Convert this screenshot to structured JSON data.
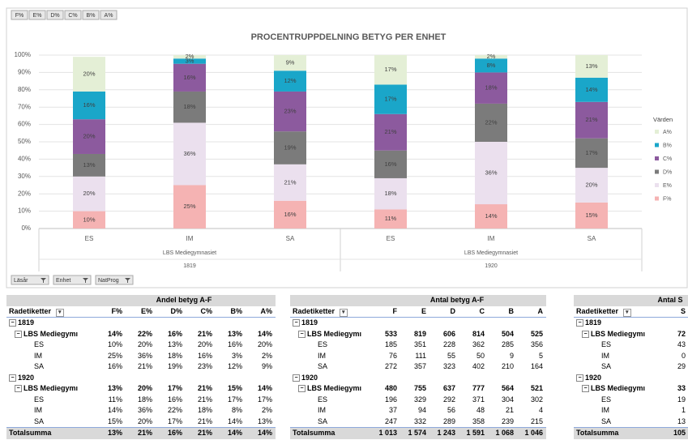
{
  "chart_data": {
    "type": "stacked_bar",
    "title": "PROCENTRUPPDELNING BETYG PER ENHET",
    "categories": [
      "ES",
      "IM",
      "SA",
      "ES",
      "IM",
      "SA"
    ],
    "category_groups": [
      {
        "name": "LBS Mediegymnasiet",
        "year": "1819"
      },
      {
        "name": "LBS Mediegymnasiet",
        "year": "1920"
      }
    ],
    "series": [
      {
        "name": "F%",
        "color": "#f5b3b3",
        "values": [
          10,
          25,
          16,
          11,
          14,
          15
        ],
        "value_labels": [
          "10%",
          "25%",
          "16%",
          "11%",
          "14%",
          "15%"
        ]
      },
      {
        "name": "E%",
        "color": "#ebe0ee",
        "values": [
          20,
          36,
          21,
          18,
          36,
          20
        ],
        "value_labels": [
          "20%",
          "36%",
          "21%",
          "18%",
          "36%",
          "20%"
        ]
      },
      {
        "name": "D%",
        "color": "#7b7b7b",
        "values": [
          13,
          18,
          19,
          16,
          22,
          17
        ],
        "value_labels": [
          "13%",
          "18%",
          "19%",
          "16%",
          "22%",
          "17%"
        ]
      },
      {
        "name": "C%",
        "color": "#8c5a9e",
        "values": [
          20,
          16,
          23,
          21,
          18,
          21
        ],
        "value_labels": [
          "20%",
          "16%",
          "23%",
          "21%",
          "18%",
          "21%"
        ]
      },
      {
        "name": "B%",
        "color": "#1aa6c9",
        "values": [
          16,
          3,
          12,
          17,
          8,
          14
        ],
        "value_labels": [
          "16%",
          "3%",
          "12%",
          "17%",
          "8%",
          "14%"
        ]
      },
      {
        "name": "A%",
        "color": "#e4efd6",
        "values": [
          20,
          2,
          9,
          17,
          2,
          13
        ],
        "value_labels": [
          "20%",
          "2%",
          "9%",
          "17%",
          "2%",
          "13%"
        ]
      }
    ],
    "ylim": [
      0,
      100
    ],
    "yticks": [
      {
        "value": 0,
        "label": "0%"
      },
      {
        "value": 10,
        "label": "10%"
      },
      {
        "value": 20,
        "label": "20%"
      },
      {
        "value": 30,
        "label": "30%"
      },
      {
        "value": 40,
        "label": "40%"
      },
      {
        "value": 50,
        "label": "50%"
      },
      {
        "value": 60,
        "label": "60%"
      },
      {
        "value": 70,
        "label": "70%"
      },
      {
        "value": 80,
        "label": "80%"
      },
      {
        "value": 90,
        "label": "90%"
      },
      {
        "value": 100,
        "label": "100%"
      }
    ],
    "grid": true,
    "legend_title": "Värden",
    "legend": "right"
  },
  "field_buttons": [
    "F%",
    "E%",
    "D%",
    "C%",
    "B%",
    "A%"
  ],
  "filter_buttons": [
    "Läsår",
    "Enhet",
    "NatProg"
  ],
  "tables": [
    {
      "title": "Andel betyg A-F",
      "header": [
        "Radetiketter",
        "F%",
        "E%",
        "D%",
        "C%",
        "B%",
        "A%"
      ],
      "rows": [
        [
          "1819"
        ],
        [
          "LBS Mediegymı",
          "14%",
          "22%",
          "16%",
          "21%",
          "13%",
          "14%"
        ],
        [
          "ES",
          "10%",
          "20%",
          "13%",
          "20%",
          "16%",
          "20%"
        ],
        [
          "IM",
          "25%",
          "36%",
          "18%",
          "16%",
          "3%",
          "2%"
        ],
        [
          "SA",
          "16%",
          "21%",
          "19%",
          "23%",
          "12%",
          "9%"
        ],
        [
          "1920"
        ],
        [
          "LBS Mediegymı",
          "13%",
          "20%",
          "17%",
          "21%",
          "15%",
          "14%"
        ],
        [
          "ES",
          "11%",
          "18%",
          "16%",
          "21%",
          "17%",
          "17%"
        ],
        [
          "IM",
          "14%",
          "36%",
          "22%",
          "18%",
          "8%",
          "2%"
        ],
        [
          "SA",
          "15%",
          "20%",
          "17%",
          "21%",
          "14%",
          "13%"
        ]
      ],
      "total": [
        "Totalsumma",
        "13%",
        "21%",
        "16%",
        "21%",
        "14%",
        "14%"
      ]
    },
    {
      "title": "Antal betyg A-F",
      "header": [
        "Radetiketter",
        "F",
        "E",
        "D",
        "C",
        "B",
        "A"
      ],
      "rows": [
        [
          "1819"
        ],
        [
          "LBS Mediegymı",
          "533",
          "819",
          "606",
          "814",
          "504",
          "525"
        ],
        [
          "ES",
          "185",
          "351",
          "228",
          "362",
          "285",
          "356"
        ],
        [
          "IM",
          "76",
          "111",
          "55",
          "50",
          "9",
          "5"
        ],
        [
          "SA",
          "272",
          "357",
          "323",
          "402",
          "210",
          "164"
        ],
        [
          "1920"
        ],
        [
          "LBS Mediegymı",
          "480",
          "755",
          "637",
          "777",
          "564",
          "521"
        ],
        [
          "ES",
          "196",
          "329",
          "292",
          "371",
          "304",
          "302"
        ],
        [
          "IM",
          "37",
          "94",
          "56",
          "48",
          "21",
          "4"
        ],
        [
          "SA",
          "247",
          "332",
          "289",
          "358",
          "239",
          "215"
        ]
      ],
      "total": [
        "Totalsumma",
        "1 013",
        "1 574",
        "1 243",
        "1 591",
        "1 068",
        "1 046"
      ]
    },
    {
      "title": "Antal S",
      "header": [
        "Radetiketter",
        "S"
      ],
      "rows": [
        [
          "1819"
        ],
        [
          "LBS Mediegymı",
          "72"
        ],
        [
          "ES",
          "43"
        ],
        [
          "IM",
          "0"
        ],
        [
          "SA",
          "29"
        ],
        [
          "1920"
        ],
        [
          "LBS Mediegymı",
          "33"
        ],
        [
          "ES",
          "19"
        ],
        [
          "IM",
          "1"
        ],
        [
          "SA",
          "13"
        ]
      ],
      "total": [
        "Totalsumma",
        "105"
      ]
    }
  ]
}
